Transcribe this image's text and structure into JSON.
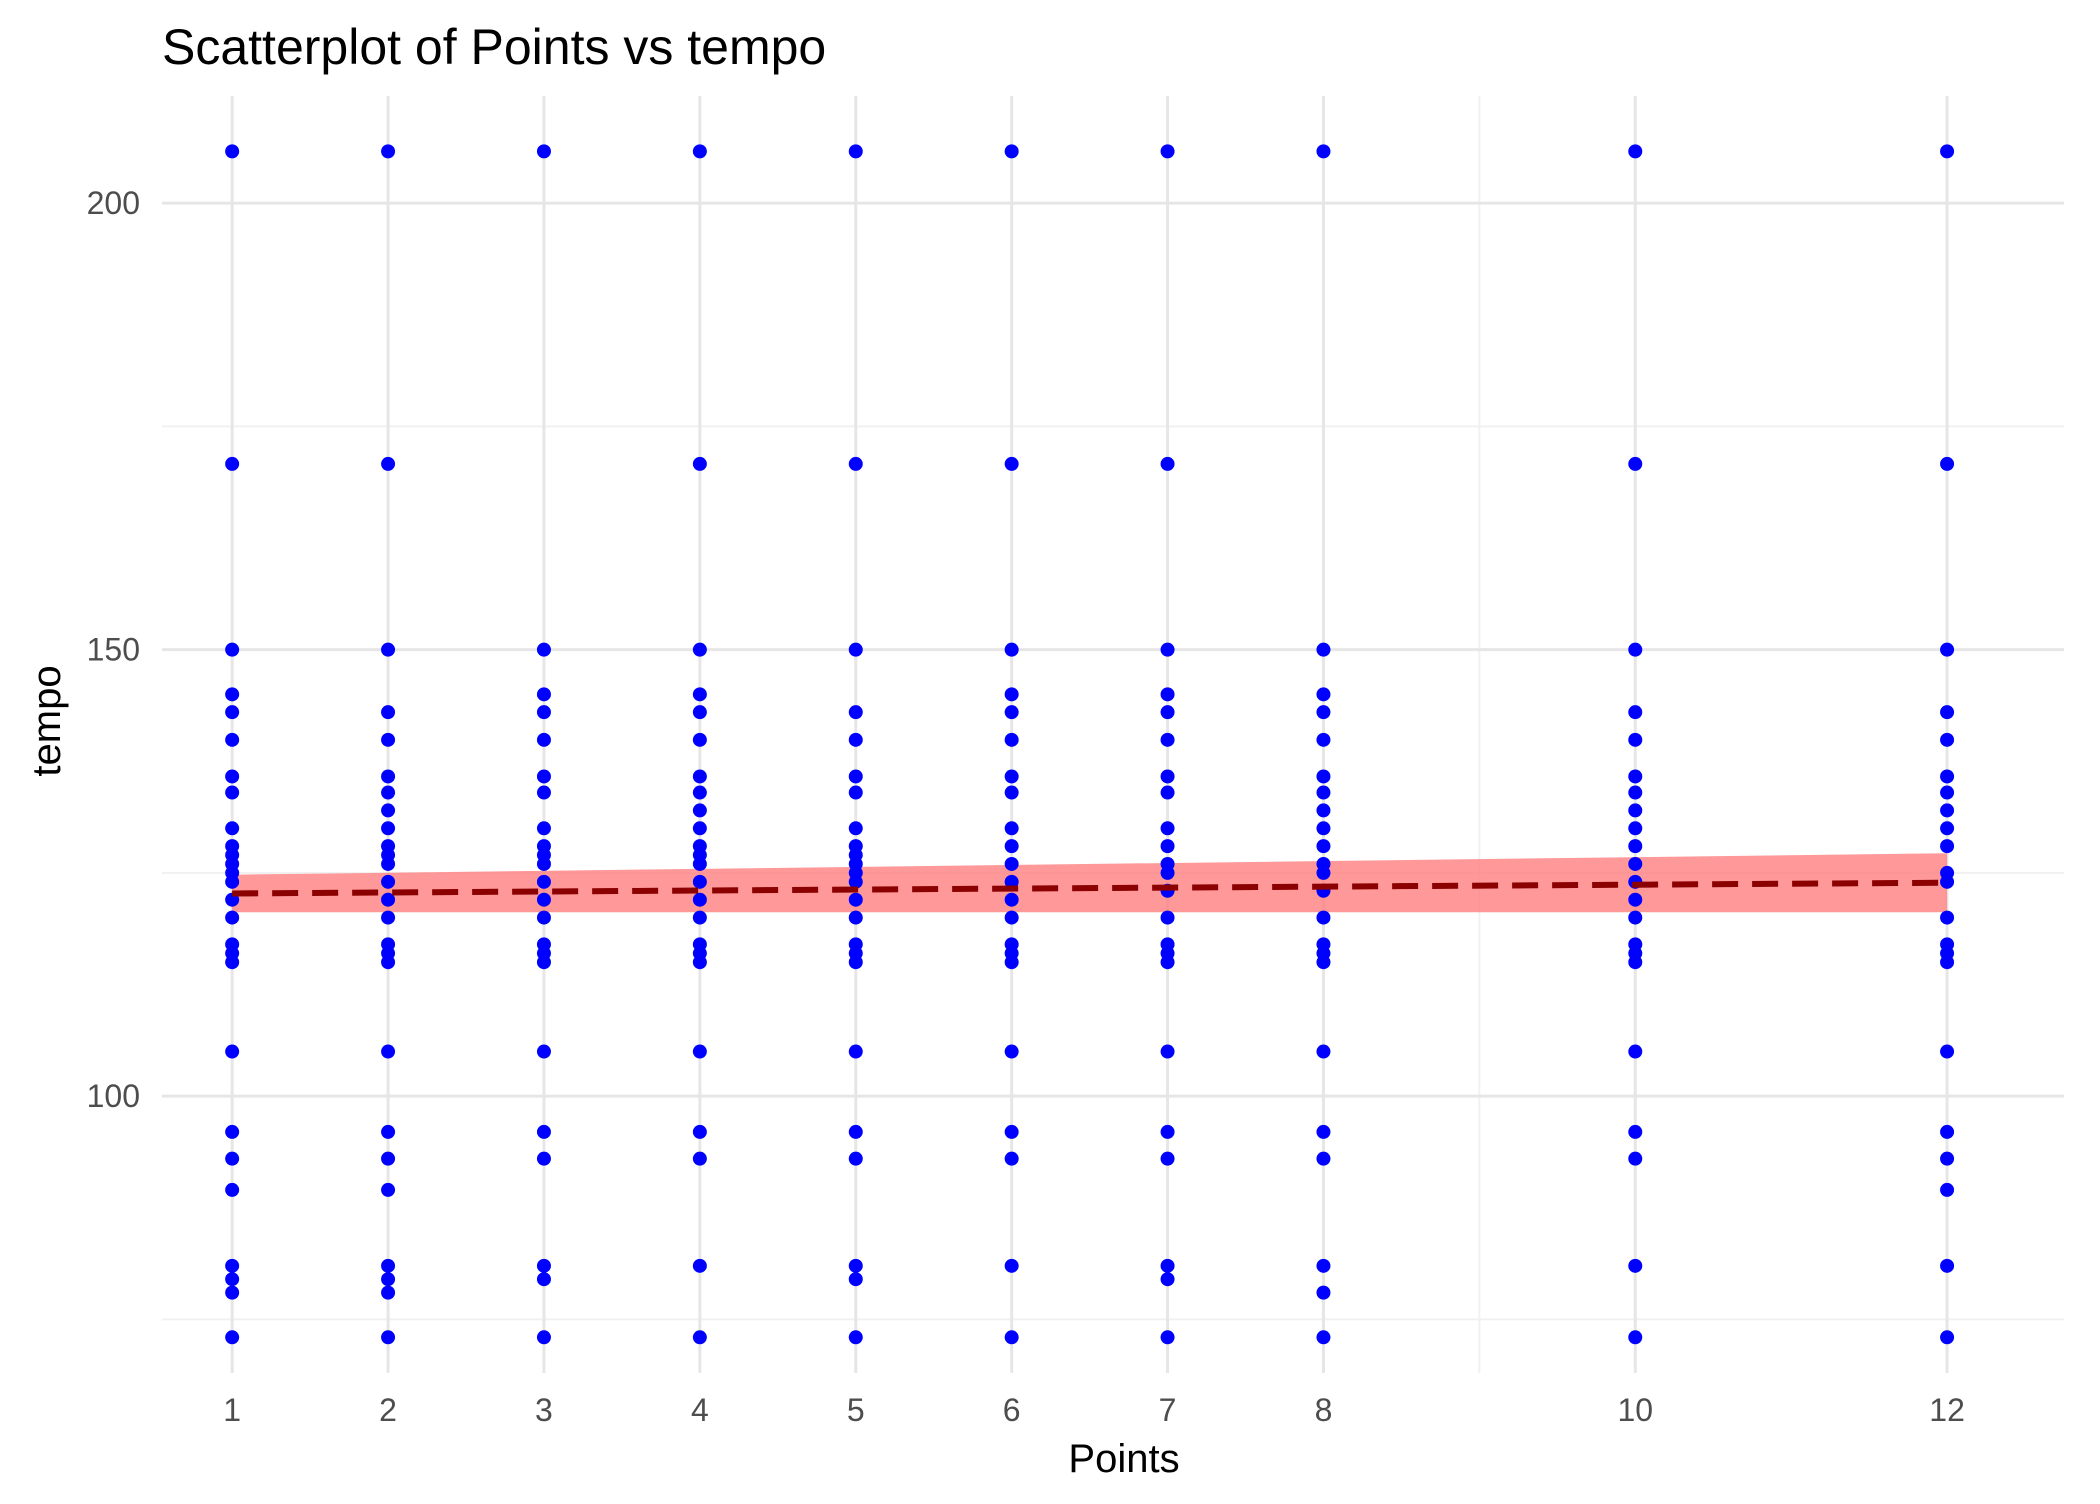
{
  "chart_data": {
    "type": "scatter",
    "title": "Scatterplot of Points vs  tempo",
    "xlabel": "Points",
    "ylabel": "tempo",
    "xlim": [
      0.55,
      12.75
    ],
    "ylim": [
      69,
      212
    ],
    "x_ticks": [
      1,
      2,
      3,
      4,
      5,
      6,
      7,
      8,
      10,
      12
    ],
    "y_ticks": [
      100,
      150,
      200
    ],
    "y_minor_gridlines": [
      75,
      125,
      175
    ],
    "x_minor_gridlines": [
      9
    ],
    "grid": true,
    "legend": "none",
    "point_color": "#0000ff",
    "trend_line_color": "#8b0000",
    "confidence_band_color": "#ff8080",
    "trend_line": {
      "method": "linear",
      "x": [
        1,
        12
      ],
      "y": [
        122.7,
        123.9
      ],
      "ci_lower": [
        120.6,
        120.6
      ],
      "ci_upper": [
        124.8,
        127.2
      ]
    },
    "series": [
      {
        "points": [
          {
            "x": 1,
            "y": 205.8
          },
          {
            "x": 1,
            "y": 170.8
          },
          {
            "x": 1,
            "y": 150
          },
          {
            "x": 1,
            "y": 145
          },
          {
            "x": 1,
            "y": 143
          },
          {
            "x": 1,
            "y": 139.9
          },
          {
            "x": 1,
            "y": 135.8
          },
          {
            "x": 1,
            "y": 134
          },
          {
            "x": 1,
            "y": 130
          },
          {
            "x": 1,
            "y": 128
          },
          {
            "x": 1,
            "y": 127
          },
          {
            "x": 1,
            "y": 126
          },
          {
            "x": 1,
            "y": 125
          },
          {
            "x": 1,
            "y": 124
          },
          {
            "x": 1,
            "y": 122
          },
          {
            "x": 1,
            "y": 120
          },
          {
            "x": 1,
            "y": 117
          },
          {
            "x": 1,
            "y": 116
          },
          {
            "x": 1,
            "y": 115
          },
          {
            "x": 1,
            "y": 105
          },
          {
            "x": 1,
            "y": 96
          },
          {
            "x": 1,
            "y": 93
          },
          {
            "x": 1,
            "y": 89.5
          },
          {
            "x": 1,
            "y": 81
          },
          {
            "x": 1,
            "y": 79.5
          },
          {
            "x": 1,
            "y": 78
          },
          {
            "x": 1,
            "y": 73
          },
          {
            "x": 2,
            "y": 205.8
          },
          {
            "x": 2,
            "y": 170.8
          },
          {
            "x": 2,
            "y": 150
          },
          {
            "x": 2,
            "y": 143
          },
          {
            "x": 2,
            "y": 139.9
          },
          {
            "x": 2,
            "y": 135.8
          },
          {
            "x": 2,
            "y": 134
          },
          {
            "x": 2,
            "y": 132
          },
          {
            "x": 2,
            "y": 130
          },
          {
            "x": 2,
            "y": 128
          },
          {
            "x": 2,
            "y": 127
          },
          {
            "x": 2,
            "y": 126
          },
          {
            "x": 2,
            "y": 124
          },
          {
            "x": 2,
            "y": 122
          },
          {
            "x": 2,
            "y": 120
          },
          {
            "x": 2,
            "y": 117
          },
          {
            "x": 2,
            "y": 116
          },
          {
            "x": 2,
            "y": 115
          },
          {
            "x": 2,
            "y": 105
          },
          {
            "x": 2,
            "y": 96
          },
          {
            "x": 2,
            "y": 93
          },
          {
            "x": 2,
            "y": 89.5
          },
          {
            "x": 2,
            "y": 81
          },
          {
            "x": 2,
            "y": 79.5
          },
          {
            "x": 2,
            "y": 78
          },
          {
            "x": 2,
            "y": 73
          },
          {
            "x": 3,
            "y": 205.8
          },
          {
            "x": 3,
            "y": 150
          },
          {
            "x": 3,
            "y": 145
          },
          {
            "x": 3,
            "y": 143
          },
          {
            "x": 3,
            "y": 139.9
          },
          {
            "x": 3,
            "y": 135.8
          },
          {
            "x": 3,
            "y": 134
          },
          {
            "x": 3,
            "y": 130
          },
          {
            "x": 3,
            "y": 128
          },
          {
            "x": 3,
            "y": 127
          },
          {
            "x": 3,
            "y": 126
          },
          {
            "x": 3,
            "y": 124
          },
          {
            "x": 3,
            "y": 122
          },
          {
            "x": 3,
            "y": 120
          },
          {
            "x": 3,
            "y": 117
          },
          {
            "x": 3,
            "y": 116
          },
          {
            "x": 3,
            "y": 115
          },
          {
            "x": 3,
            "y": 105
          },
          {
            "x": 3,
            "y": 96
          },
          {
            "x": 3,
            "y": 93
          },
          {
            "x": 3,
            "y": 81
          },
          {
            "x": 3,
            "y": 79.5
          },
          {
            "x": 3,
            "y": 73
          },
          {
            "x": 4,
            "y": 205.8
          },
          {
            "x": 4,
            "y": 170.8
          },
          {
            "x": 4,
            "y": 150
          },
          {
            "x": 4,
            "y": 145
          },
          {
            "x": 4,
            "y": 143
          },
          {
            "x": 4,
            "y": 139.9
          },
          {
            "x": 4,
            "y": 135.8
          },
          {
            "x": 4,
            "y": 134
          },
          {
            "x": 4,
            "y": 132
          },
          {
            "x": 4,
            "y": 130
          },
          {
            "x": 4,
            "y": 128
          },
          {
            "x": 4,
            "y": 127
          },
          {
            "x": 4,
            "y": 126
          },
          {
            "x": 4,
            "y": 124
          },
          {
            "x": 4,
            "y": 122
          },
          {
            "x": 4,
            "y": 120
          },
          {
            "x": 4,
            "y": 117
          },
          {
            "x": 4,
            "y": 116
          },
          {
            "x": 4,
            "y": 115
          },
          {
            "x": 4,
            "y": 105
          },
          {
            "x": 4,
            "y": 96
          },
          {
            "x": 4,
            "y": 93
          },
          {
            "x": 4,
            "y": 81
          },
          {
            "x": 4,
            "y": 73
          },
          {
            "x": 5,
            "y": 205.8
          },
          {
            "x": 5,
            "y": 170.8
          },
          {
            "x": 5,
            "y": 150
          },
          {
            "x": 5,
            "y": 143
          },
          {
            "x": 5,
            "y": 139.9
          },
          {
            "x": 5,
            "y": 135.8
          },
          {
            "x": 5,
            "y": 134
          },
          {
            "x": 5,
            "y": 130
          },
          {
            "x": 5,
            "y": 128
          },
          {
            "x": 5,
            "y": 127
          },
          {
            "x": 5,
            "y": 126
          },
          {
            "x": 5,
            "y": 125
          },
          {
            "x": 5,
            "y": 124
          },
          {
            "x": 5,
            "y": 122
          },
          {
            "x": 5,
            "y": 120
          },
          {
            "x": 5,
            "y": 117
          },
          {
            "x": 5,
            "y": 116
          },
          {
            "x": 5,
            "y": 115
          },
          {
            "x": 5,
            "y": 105
          },
          {
            "x": 5,
            "y": 96
          },
          {
            "x": 5,
            "y": 93
          },
          {
            "x": 5,
            "y": 81
          },
          {
            "x": 5,
            "y": 79.5
          },
          {
            "x": 5,
            "y": 73
          },
          {
            "x": 6,
            "y": 205.8
          },
          {
            "x": 6,
            "y": 170.8
          },
          {
            "x": 6,
            "y": 150
          },
          {
            "x": 6,
            "y": 145
          },
          {
            "x": 6,
            "y": 143
          },
          {
            "x": 6,
            "y": 139.9
          },
          {
            "x": 6,
            "y": 135.8
          },
          {
            "x": 6,
            "y": 134
          },
          {
            "x": 6,
            "y": 130
          },
          {
            "x": 6,
            "y": 128
          },
          {
            "x": 6,
            "y": 126
          },
          {
            "x": 6,
            "y": 124
          },
          {
            "x": 6,
            "y": 122
          },
          {
            "x": 6,
            "y": 120
          },
          {
            "x": 6,
            "y": 117
          },
          {
            "x": 6,
            "y": 116
          },
          {
            "x": 6,
            "y": 115
          },
          {
            "x": 6,
            "y": 105
          },
          {
            "x": 6,
            "y": 96
          },
          {
            "x": 6,
            "y": 93
          },
          {
            "x": 6,
            "y": 81
          },
          {
            "x": 6,
            "y": 73
          },
          {
            "x": 7,
            "y": 205.8
          },
          {
            "x": 7,
            "y": 170.8
          },
          {
            "x": 7,
            "y": 150
          },
          {
            "x": 7,
            "y": 145
          },
          {
            "x": 7,
            "y": 143
          },
          {
            "x": 7,
            "y": 139.9
          },
          {
            "x": 7,
            "y": 135.8
          },
          {
            "x": 7,
            "y": 134
          },
          {
            "x": 7,
            "y": 130
          },
          {
            "x": 7,
            "y": 128
          },
          {
            "x": 7,
            "y": 126
          },
          {
            "x": 7,
            "y": 125
          },
          {
            "x": 7,
            "y": 123
          },
          {
            "x": 7,
            "y": 120
          },
          {
            "x": 7,
            "y": 117
          },
          {
            "x": 7,
            "y": 116
          },
          {
            "x": 7,
            "y": 115
          },
          {
            "x": 7,
            "y": 105
          },
          {
            "x": 7,
            "y": 96
          },
          {
            "x": 7,
            "y": 93
          },
          {
            "x": 7,
            "y": 81
          },
          {
            "x": 7,
            "y": 79.5
          },
          {
            "x": 7,
            "y": 73
          },
          {
            "x": 8,
            "y": 205.8
          },
          {
            "x": 8,
            "y": 150
          },
          {
            "x": 8,
            "y": 145
          },
          {
            "x": 8,
            "y": 143
          },
          {
            "x": 8,
            "y": 139.9
          },
          {
            "x": 8,
            "y": 135.8
          },
          {
            "x": 8,
            "y": 134
          },
          {
            "x": 8,
            "y": 132
          },
          {
            "x": 8,
            "y": 130
          },
          {
            "x": 8,
            "y": 128
          },
          {
            "x": 8,
            "y": 126
          },
          {
            "x": 8,
            "y": 125
          },
          {
            "x": 8,
            "y": 123
          },
          {
            "x": 8,
            "y": 120
          },
          {
            "x": 8,
            "y": 117
          },
          {
            "x": 8,
            "y": 116
          },
          {
            "x": 8,
            "y": 115
          },
          {
            "x": 8,
            "y": 105
          },
          {
            "x": 8,
            "y": 96
          },
          {
            "x": 8,
            "y": 93
          },
          {
            "x": 8,
            "y": 81
          },
          {
            "x": 8,
            "y": 78
          },
          {
            "x": 8,
            "y": 73
          },
          {
            "x": 10,
            "y": 205.8
          },
          {
            "x": 10,
            "y": 170.8
          },
          {
            "x": 10,
            "y": 150
          },
          {
            "x": 10,
            "y": 143
          },
          {
            "x": 10,
            "y": 139.9
          },
          {
            "x": 10,
            "y": 135.8
          },
          {
            "x": 10,
            "y": 134
          },
          {
            "x": 10,
            "y": 132
          },
          {
            "x": 10,
            "y": 130
          },
          {
            "x": 10,
            "y": 128
          },
          {
            "x": 10,
            "y": 126
          },
          {
            "x": 10,
            "y": 124
          },
          {
            "x": 10,
            "y": 122
          },
          {
            "x": 10,
            "y": 120
          },
          {
            "x": 10,
            "y": 117
          },
          {
            "x": 10,
            "y": 116
          },
          {
            "x": 10,
            "y": 115
          },
          {
            "x": 10,
            "y": 105
          },
          {
            "x": 10,
            "y": 96
          },
          {
            "x": 10,
            "y": 93
          },
          {
            "x": 10,
            "y": 81
          },
          {
            "x": 10,
            "y": 73
          },
          {
            "x": 12,
            "y": 205.8
          },
          {
            "x": 12,
            "y": 170.8
          },
          {
            "x": 12,
            "y": 150
          },
          {
            "x": 12,
            "y": 143
          },
          {
            "x": 12,
            "y": 139.9
          },
          {
            "x": 12,
            "y": 135.8
          },
          {
            "x": 12,
            "y": 134
          },
          {
            "x": 12,
            "y": 132
          },
          {
            "x": 12,
            "y": 130
          },
          {
            "x": 12,
            "y": 128
          },
          {
            "x": 12,
            "y": 125
          },
          {
            "x": 12,
            "y": 124
          },
          {
            "x": 12,
            "y": 120
          },
          {
            "x": 12,
            "y": 117
          },
          {
            "x": 12,
            "y": 116
          },
          {
            "x": 12,
            "y": 115
          },
          {
            "x": 12,
            "y": 105
          },
          {
            "x": 12,
            "y": 96
          },
          {
            "x": 12,
            "y": 93
          },
          {
            "x": 12,
            "y": 89.5
          },
          {
            "x": 12,
            "y": 81
          },
          {
            "x": 12,
            "y": 73
          }
        ]
      }
    ]
  }
}
